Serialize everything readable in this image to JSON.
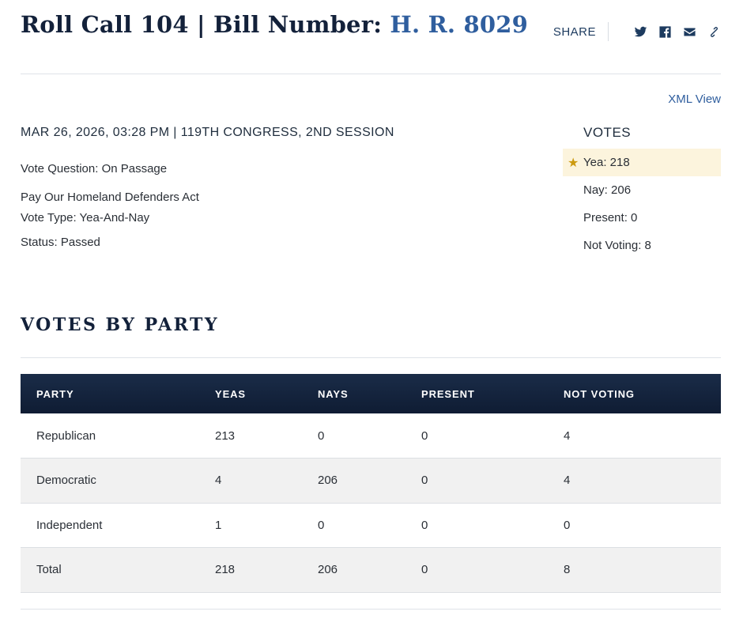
{
  "header": {
    "title_prefix": "Roll Call 104 | Bill Number: ",
    "bill_number": "H. R. 8029",
    "share_label": "SHARE",
    "share_icons": [
      "twitter-icon",
      "facebook-icon",
      "email-icon",
      "link-icon"
    ]
  },
  "xml_view": "XML View",
  "vote_meta": "MAR 26, 2026, 03:28 PM | 119TH CONGRESS, 2ND SESSION",
  "details": {
    "vote_question": "Vote Question: On Passage",
    "bill_title": "Pay Our Homeland Defenders Act",
    "vote_type": "Vote Type: Yea-And-Nay",
    "status": "Status: Passed"
  },
  "votes": {
    "heading": "VOTES",
    "star": "★",
    "yea": "Yea: 218",
    "nay": "Nay: 206",
    "present": "Present: 0",
    "not_voting": "Not Voting: 8"
  },
  "party_section": {
    "title": "VOTES BY PARTY",
    "columns": [
      "PARTY",
      "YEAS",
      "NAYS",
      "PRESENT",
      "NOT VOTING"
    ],
    "rows": [
      [
        "Republican",
        "213",
        "0",
        "0",
        "4"
      ],
      [
        "Democratic",
        "4",
        "206",
        "0",
        "4"
      ],
      [
        "Independent",
        "1",
        "0",
        "0",
        "0"
      ],
      [
        "Total",
        "218",
        "206",
        "0",
        "8"
      ]
    ]
  },
  "colors": {
    "link": "#2f5e9e",
    "table_header": "#13213a",
    "winner_highlight": "#fcf4dd",
    "star": "#cc9a10"
  }
}
